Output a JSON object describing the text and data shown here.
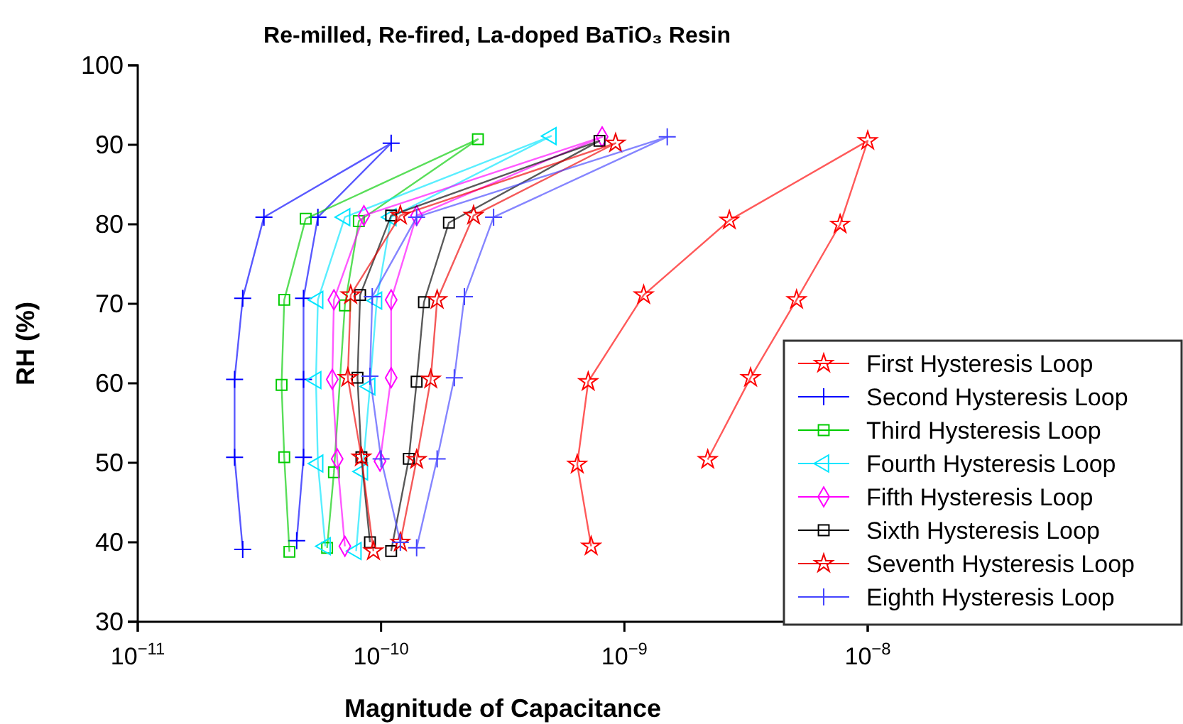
{
  "chart_data": {
    "type": "line",
    "title": "Re-milled, Re-fired, La-doped BaTiO₃ Resin",
    "xlabel": "Magnitude of Capacitance",
    "ylabel": "RH (%)",
    "log": "x",
    "xlim": [
      1e-11,
      1e-08
    ],
    "xticks": [
      {
        "value": 1e-11,
        "label": "10$^{−11}$"
      },
      {
        "value": 1e-10,
        "label": "10$^{−10}$"
      },
      {
        "value": 1e-09,
        "label": "10$^{−9}$"
      },
      {
        "value": 1e-08,
        "label": "10$^{−8}$"
      }
    ],
    "ylim": [
      30,
      100
    ],
    "yticks": [
      30,
      40,
      50,
      60,
      70,
      80,
      90,
      100
    ],
    "grid": false,
    "legend": "right",
    "series": [
      {
        "name": "First Hysteresis Loop",
        "color": "#ff0000",
        "marker": "star",
        "x": [
          7.3e-10,
          6.4e-10,
          7.1e-10,
          1.2e-09,
          2.7e-09,
          1e-08,
          7.7e-09,
          5.1e-09,
          3.3e-09,
          2.2e-09
        ],
        "values": [
          39.5,
          49.8,
          60.2,
          71.1,
          80.5,
          90.5,
          80,
          70.5,
          60.7,
          50.4
        ]
      },
      {
        "name": "Second Hysteresis Loop",
        "color": "#0000ff",
        "marker": "cross",
        "x": [
          2.7e-11,
          2.5e-11,
          2.5e-11,
          2.7e-11,
          3.3e-11,
          1.1e-10,
          5.5e-11,
          4.8e-11,
          4.8e-11,
          4.8e-11,
          4.5e-11
        ],
        "values": [
          39.1,
          50.7,
          60.5,
          70.7,
          80.9,
          90.2,
          80.9,
          70.7,
          60.5,
          50.7,
          40.2
        ]
      },
      {
        "name": "Third Hysteresis Loop",
        "color": "#00cc00",
        "marker": "square",
        "x": [
          4.2e-11,
          4e-11,
          3.9e-11,
          4e-11,
          4.9e-11,
          2.5e-10,
          8.1e-11,
          7.1e-11,
          6.4e-11,
          6e-11
        ],
        "values": [
          38.8,
          50.7,
          59.8,
          70.5,
          80.7,
          90.7,
          80.4,
          69.8,
          48.8,
          39.3
        ]
      },
      {
        "name": "Fourth Hysteresis Loop",
        "color": "#00e5ff",
        "marker": "triangle",
        "x": [
          5.9e-11,
          5.5e-11,
          5.4e-11,
          5.5e-11,
          7.1e-11,
          5e-10,
          1.1e-10,
          9.6e-11,
          9e-11,
          8.4e-11,
          7.9e-11
        ],
        "values": [
          39.5,
          49.9,
          60.4,
          70.5,
          80.9,
          91.1,
          80.9,
          70.4,
          59.6,
          48.9,
          38.9
        ]
      },
      {
        "name": "Fifth Hysteresis Loop",
        "color": "#ff00ff",
        "marker": "diamond",
        "x": [
          7.1e-11,
          6.6e-11,
          6.3e-11,
          6.4e-11,
          8.5e-11,
          8.1e-10,
          1.4e-10,
          1.1e-10,
          1.1e-10,
          9.9e-11
        ],
        "values": [
          39.5,
          50.5,
          60.5,
          70.5,
          81.1,
          91,
          81.1,
          70.5,
          60.7,
          50.2
        ]
      },
      {
        "name": "Sixth Hysteresis Loop",
        "color": "#000000",
        "marker": "square",
        "x": [
          9e-11,
          8.3e-11,
          8e-11,
          8.2e-11,
          1.1e-10,
          7.9e-10,
          1.9e-10,
          1.5e-10,
          1.4e-10,
          1.3e-10,
          1.1e-10
        ],
        "values": [
          40,
          50.7,
          60.7,
          71.1,
          81.1,
          90.5,
          80.2,
          70.2,
          60.2,
          50.5,
          38.9
        ]
      },
      {
        "name": "Seventh Hysteresis Loop",
        "color": "#ee0000",
        "marker": "star",
        "x": [
          9.3e-11,
          8.3e-11,
          7.3e-11,
          7.5e-11,
          1.2e-10,
          9.2e-10,
          2.4e-10,
          1.7e-10,
          1.6e-10,
          1.4e-10,
          1.2e-10
        ],
        "values": [
          38.9,
          50.7,
          60.7,
          71.1,
          81.1,
          90.2,
          81.1,
          70.5,
          60.5,
          50.4,
          40
        ]
      },
      {
        "name": "Eighth Hysteresis Loop",
        "color": "#4444ff",
        "marker": "cross",
        "x": [
          1.2e-10,
          1e-10,
          9e-11,
          9.2e-11,
          1.4e-10,
          1.5e-09,
          2.9e-10,
          2.2e-10,
          2e-10,
          1.7e-10,
          1.4e-10
        ],
        "values": [
          40,
          50.5,
          60.9,
          70.9,
          80.9,
          91,
          80.9,
          70.9,
          60.7,
          50.5,
          39.3
        ]
      }
    ]
  }
}
